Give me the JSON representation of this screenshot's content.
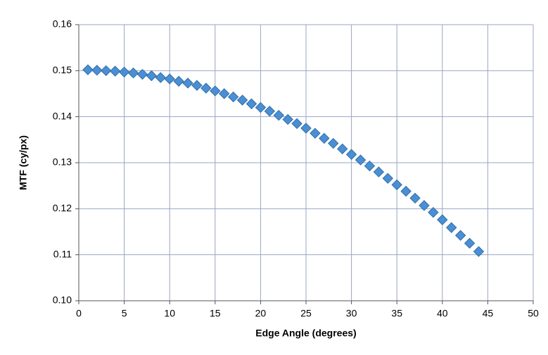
{
  "chart_data": {
    "type": "scatter",
    "x_label": "Edge Angle (degrees)",
    "y_label": "MTF (cy/px)",
    "x": [
      1,
      2,
      3,
      4,
      5,
      6,
      7,
      8,
      9,
      10,
      11,
      12,
      13,
      14,
      15,
      16,
      17,
      18,
      19,
      20,
      21,
      22,
      23,
      24,
      25,
      26,
      27,
      28,
      29,
      30,
      31,
      32,
      33,
      34,
      35,
      36,
      37,
      38,
      39,
      40,
      41,
      42,
      43,
      44
    ],
    "values": [
      0.1502,
      0.1501,
      0.15,
      0.1499,
      0.1497,
      0.1495,
      0.1492,
      0.1489,
      0.1485,
      0.1482,
      0.1477,
      0.1473,
      0.1468,
      0.1462,
      0.1456,
      0.145,
      0.1443,
      0.1436,
      0.1428,
      0.142,
      0.1412,
      0.1403,
      0.1394,
      0.1385,
      0.1375,
      0.1364,
      0.1353,
      0.1342,
      0.133,
      0.1318,
      0.1306,
      0.1293,
      0.128,
      0.1266,
      0.1252,
      0.1238,
      0.1223,
      0.1207,
      0.1192,
      0.1176,
      0.1159,
      0.1142,
      0.1125,
      0.1107
    ],
    "color": "#4a8fd4",
    "xlim": [
      0,
      50
    ],
    "xticks": [
      0,
      5,
      10,
      15,
      20,
      25,
      30,
      35,
      40,
      45,
      50
    ],
    "ylim": [
      0.1,
      0.16
    ],
    "yticks": [
      {
        "value": 0.1,
        "label": "0.10"
      },
      0.11,
      0.12,
      0.13,
      0.14,
      0.15,
      0.16
    ],
    "grid": true
  }
}
